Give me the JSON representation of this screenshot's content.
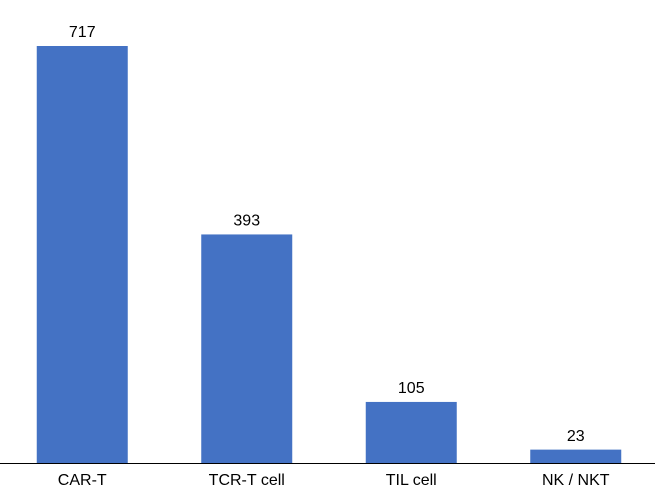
{
  "chart_data": {
    "type": "bar",
    "categories": [
      "CAR-T",
      "TCR-T cell",
      "TIL cell",
      "NK / NKT"
    ],
    "values": [
      717,
      393,
      105,
      23
    ],
    "color": "#4472c4",
    "grid": false
  }
}
